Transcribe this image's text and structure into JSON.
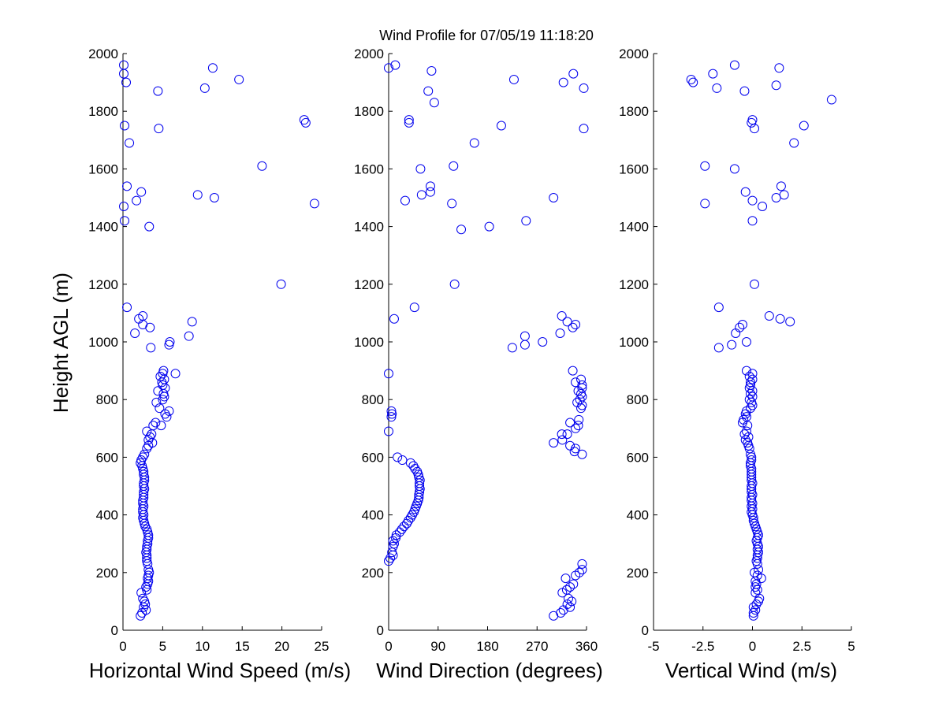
{
  "title": "Wind Profile for  07/05/19 11:18:20",
  "ylabel": "Height AGL (m)",
  "colors": {
    "marker": "#0000ee",
    "axis": "#000000"
  },
  "chart_data": [
    {
      "type": "scatter",
      "xlabel": "Horizontal Wind Speed (m/s)",
      "xlim": [
        0,
        25
      ],
      "ylim": [
        0,
        2000
      ],
      "xticks": [
        "0",
        "5",
        "10",
        "15",
        "20",
        "25"
      ],
      "xtick_values": [
        0,
        5,
        10,
        15,
        20,
        25
      ],
      "yticks": [
        "0",
        "200",
        "400",
        "600",
        "800",
        "1000",
        "1200",
        "1400",
        "1600",
        "1800",
        "2000"
      ],
      "marker": "circle",
      "points": [
        [
          2.2,
          50
        ],
        [
          2.4,
          60
        ],
        [
          2.9,
          70
        ],
        [
          2.6,
          80
        ],
        [
          2.8,
          90
        ],
        [
          2.7,
          100
        ],
        [
          2.5,
          110
        ],
        [
          2.3,
          130
        ],
        [
          3.0,
          140
        ],
        [
          2.9,
          150
        ],
        [
          3.1,
          160
        ],
        [
          3.2,
          170
        ],
        [
          3.1,
          180
        ],
        [
          3.2,
          190
        ],
        [
          3.3,
          200
        ],
        [
          3.2,
          210
        ],
        [
          3.1,
          230
        ],
        [
          3.0,
          240
        ],
        [
          3.0,
          250
        ],
        [
          3.0,
          260
        ],
        [
          2.9,
          270
        ],
        [
          3.0,
          280
        ],
        [
          3.0,
          290
        ],
        [
          3.1,
          300
        ],
        [
          3.1,
          310
        ],
        [
          3.2,
          320
        ],
        [
          3.2,
          330
        ],
        [
          3.1,
          340
        ],
        [
          3.0,
          350
        ],
        [
          2.8,
          360
        ],
        [
          2.7,
          370
        ],
        [
          2.6,
          380
        ],
        [
          2.5,
          390
        ],
        [
          2.6,
          400
        ],
        [
          2.5,
          410
        ],
        [
          2.5,
          420
        ],
        [
          2.6,
          430
        ],
        [
          2.5,
          440
        ],
        [
          2.5,
          450
        ],
        [
          2.6,
          460
        ],
        [
          2.6,
          470
        ],
        [
          2.6,
          480
        ],
        [
          2.7,
          490
        ],
        [
          2.6,
          500
        ],
        [
          2.6,
          510
        ],
        [
          2.7,
          520
        ],
        [
          2.7,
          530
        ],
        [
          2.6,
          540
        ],
        [
          2.6,
          550
        ],
        [
          2.5,
          560
        ],
        [
          2.4,
          570
        ],
        [
          2.2,
          580
        ],
        [
          2.3,
          590
        ],
        [
          2.5,
          600
        ],
        [
          2.7,
          610
        ],
        [
          3.0,
          630
        ],
        [
          3.2,
          640
        ],
        [
          3.7,
          650
        ],
        [
          3.2,
          660
        ],
        [
          3.4,
          670
        ],
        [
          3.6,
          680
        ],
        [
          3.0,
          690
        ],
        [
          3.8,
          710
        ],
        [
          4.1,
          720
        ],
        [
          4.8,
          710
        ],
        [
          5.5,
          740
        ],
        [
          5.8,
          760
        ],
        [
          5.3,
          750
        ],
        [
          4.6,
          770
        ],
        [
          4.2,
          790
        ],
        [
          5.0,
          800
        ],
        [
          5.2,
          810
        ],
        [
          5.1,
          820
        ],
        [
          4.4,
          830
        ],
        [
          5.3,
          840
        ],
        [
          5.0,
          850
        ],
        [
          4.9,
          860
        ],
        [
          5.2,
          870
        ],
        [
          4.7,
          880
        ],
        [
          5.0,
          890
        ],
        [
          6.6,
          890
        ],
        [
          5.1,
          900
        ],
        [
          3.5,
          980
        ],
        [
          5.8,
          990
        ],
        [
          5.9,
          1000
        ],
        [
          8.3,
          1020
        ],
        [
          1.5,
          1030
        ],
        [
          3.4,
          1050
        ],
        [
          2.5,
          1060
        ],
        [
          8.7,
          1070
        ],
        [
          2.0,
          1080
        ],
        [
          2.5,
          1090
        ],
        [
          0.5,
          1120
        ],
        [
          19.9,
          1200
        ],
        [
          0.2,
          1420
        ],
        [
          0.1,
          1470
        ],
        [
          24.1,
          1480
        ],
        [
          3.3,
          1400
        ],
        [
          1.7,
          1490
        ],
        [
          11.5,
          1500
        ],
        [
          9.4,
          1510
        ],
        [
          2.3,
          1520
        ],
        [
          0.5,
          1540
        ],
        [
          17.5,
          1610
        ],
        [
          0.8,
          1690
        ],
        [
          4.5,
          1740
        ],
        [
          0.2,
          1750
        ],
        [
          23.0,
          1760
        ],
        [
          22.8,
          1770
        ],
        [
          4.4,
          1870
        ],
        [
          10.3,
          1880
        ],
        [
          0.4,
          1900
        ],
        [
          14.6,
          1910
        ],
        [
          0.1,
          1930
        ],
        [
          11.3,
          1950
        ],
        [
          0.1,
          1960
        ]
      ]
    },
    {
      "type": "scatter",
      "xlabel": "Wind Direction (degrees)",
      "xlim": [
        0,
        360
      ],
      "ylim": [
        0,
        2000
      ],
      "xticks": [
        "0",
        "90",
        "180",
        "270",
        "360"
      ],
      "xtick_values": [
        0,
        90,
        180,
        270,
        360
      ],
      "yticks": [
        "0",
        "200",
        "400",
        "600",
        "800",
        "1000",
        "1200",
        "1400",
        "1600",
        "1800",
        "2000"
      ],
      "marker": "circle",
      "points": [
        [
          300,
          50
        ],
        [
          313,
          60
        ],
        [
          318,
          70
        ],
        [
          330,
          80
        ],
        [
          325,
          90
        ],
        [
          333,
          100
        ],
        [
          327,
          110
        ],
        [
          316,
          130
        ],
        [
          324,
          140
        ],
        [
          330,
          150
        ],
        [
          336,
          160
        ],
        [
          322,
          180
        ],
        [
          340,
          190
        ],
        [
          347,
          200
        ],
        [
          352,
          210
        ],
        [
          352,
          230
        ],
        [
          0,
          240
        ],
        [
          3,
          250
        ],
        [
          8,
          260
        ],
        [
          6,
          270
        ],
        [
          8,
          290
        ],
        [
          10,
          300
        ],
        [
          8,
          310
        ],
        [
          13,
          320
        ],
        [
          14,
          330
        ],
        [
          20,
          340
        ],
        [
          24,
          350
        ],
        [
          28,
          360
        ],
        [
          33,
          370
        ],
        [
          36,
          380
        ],
        [
          40,
          390
        ],
        [
          43,
          400
        ],
        [
          46,
          410
        ],
        [
          48,
          420
        ],
        [
          50,
          430
        ],
        [
          52,
          440
        ],
        [
          54,
          450
        ],
        [
          55,
          460
        ],
        [
          55,
          470
        ],
        [
          56,
          480
        ],
        [
          57,
          490
        ],
        [
          56,
          500
        ],
        [
          56,
          510
        ],
        [
          57,
          520
        ],
        [
          55,
          530
        ],
        [
          54,
          540
        ],
        [
          52,
          550
        ],
        [
          48,
          560
        ],
        [
          45,
          570
        ],
        [
          40,
          580
        ],
        [
          25,
          590
        ],
        [
          16,
          600
        ],
        [
          352,
          610
        ],
        [
          338,
          620
        ],
        [
          340,
          630
        ],
        [
          330,
          640
        ],
        [
          300,
          650
        ],
        [
          316,
          660
        ],
        [
          315,
          680
        ],
        [
          325,
          680
        ],
        [
          0,
          690
        ],
        [
          340,
          700
        ],
        [
          345,
          710
        ],
        [
          330,
          720
        ],
        [
          346,
          730
        ],
        [
          5,
          740
        ],
        [
          6,
          750
        ],
        [
          5,
          760
        ],
        [
          350,
          770
        ],
        [
          352,
          780
        ],
        [
          343,
          790
        ],
        [
          348,
          800
        ],
        [
          352,
          810
        ],
        [
          350,
          820
        ],
        [
          345,
          830
        ],
        [
          352,
          840
        ],
        [
          352,
          850
        ],
        [
          340,
          860
        ],
        [
          350,
          870
        ],
        [
          0,
          890
        ],
        [
          335,
          900
        ],
        [
          225,
          980
        ],
        [
          248,
          990
        ],
        [
          280,
          1000
        ],
        [
          248,
          1020
        ],
        [
          312,
          1030
        ],
        [
          335,
          1050
        ],
        [
          325,
          1070
        ],
        [
          340,
          1060
        ],
        [
          10,
          1080
        ],
        [
          315,
          1090
        ],
        [
          47,
          1120
        ],
        [
          120,
          1200
        ],
        [
          132,
          1390
        ],
        [
          183,
          1400
        ],
        [
          250,
          1420
        ],
        [
          115,
          1480
        ],
        [
          30,
          1490
        ],
        [
          300,
          1500
        ],
        [
          60,
          1510
        ],
        [
          76,
          1520
        ],
        [
          76,
          1540
        ],
        [
          58,
          1600
        ],
        [
          118,
          1610
        ],
        [
          156,
          1690
        ],
        [
          355,
          1740
        ],
        [
          205,
          1750
        ],
        [
          37,
          1760
        ],
        [
          37,
          1770
        ],
        [
          83,
          1830
        ],
        [
          72,
          1870
        ],
        [
          355,
          1880
        ],
        [
          318,
          1900
        ],
        [
          228,
          1910
        ],
        [
          336,
          1930
        ],
        [
          0,
          1950
        ],
        [
          12,
          1960
        ],
        [
          78,
          1940
        ]
      ]
    },
    {
      "type": "scatter",
      "xlabel": "Vertical Wind (m/s)",
      "xlim": [
        -5,
        5
      ],
      "ylim": [
        0,
        2000
      ],
      "xticks": [
        "-5",
        "-2.5",
        "0",
        "2.5",
        "5"
      ],
      "xtick_values": [
        -5,
        -2.5,
        0,
        2.5,
        5
      ],
      "yticks": [
        "0",
        "200",
        "400",
        "600",
        "800",
        "1000",
        "1200",
        "1400",
        "1600",
        "1800",
        "2000"
      ],
      "marker": "circle",
      "points": [
        [
          0.05,
          50
        ],
        [
          0.05,
          60
        ],
        [
          0.15,
          70
        ],
        [
          0.05,
          80
        ],
        [
          0.2,
          90
        ],
        [
          0.3,
          100
        ],
        [
          0.35,
          110
        ],
        [
          0.15,
          130
        ],
        [
          0.25,
          140
        ],
        [
          0.15,
          150
        ],
        [
          0.2,
          160
        ],
        [
          0.15,
          170
        ],
        [
          0.45,
          180
        ],
        [
          0.25,
          190
        ],
        [
          0.1,
          200
        ],
        [
          0.3,
          210
        ],
        [
          0.25,
          230
        ],
        [
          0.2,
          240
        ],
        [
          0.25,
          250
        ],
        [
          0.25,
          260
        ],
        [
          0.3,
          270
        ],
        [
          0.25,
          280
        ],
        [
          0.3,
          290
        ],
        [
          0.25,
          300
        ],
        [
          0.2,
          310
        ],
        [
          0.25,
          320
        ],
        [
          0.3,
          330
        ],
        [
          0.25,
          340
        ],
        [
          0.2,
          350
        ],
        [
          0.15,
          360
        ],
        [
          0.1,
          370
        ],
        [
          0.05,
          380
        ],
        [
          0.05,
          390
        ],
        [
          0.0,
          400
        ],
        [
          -0.05,
          410
        ],
        [
          0.0,
          420
        ],
        [
          -0.05,
          430
        ],
        [
          0.0,
          440
        ],
        [
          -0.05,
          450
        ],
        [
          -0.05,
          460
        ],
        [
          0.0,
          470
        ],
        [
          -0.05,
          480
        ],
        [
          -0.05,
          490
        ],
        [
          -0.05,
          500
        ],
        [
          0.0,
          510
        ],
        [
          -0.05,
          520
        ],
        [
          -0.05,
          530
        ],
        [
          -0.05,
          540
        ],
        [
          -0.05,
          550
        ],
        [
          -0.05,
          560
        ],
        [
          -0.1,
          570
        ],
        [
          -0.1,
          580
        ],
        [
          -0.05,
          590
        ],
        [
          -0.05,
          600
        ],
        [
          -0.1,
          610
        ],
        [
          -0.15,
          630
        ],
        [
          -0.2,
          640
        ],
        [
          -0.25,
          650
        ],
        [
          -0.35,
          660
        ],
        [
          -0.2,
          670
        ],
        [
          -0.4,
          680
        ],
        [
          -0.3,
          690
        ],
        [
          -0.25,
          710
        ],
        [
          -0.5,
          720
        ],
        [
          -0.45,
          730
        ],
        [
          -0.3,
          740
        ],
        [
          -0.35,
          750
        ],
        [
          -0.3,
          760
        ],
        [
          -0.1,
          770
        ],
        [
          0.0,
          780
        ],
        [
          -0.05,
          790
        ],
        [
          -0.15,
          800
        ],
        [
          0.0,
          810
        ],
        [
          -0.1,
          820
        ],
        [
          0.0,
          830
        ],
        [
          -0.15,
          840
        ],
        [
          -0.1,
          850
        ],
        [
          -0.1,
          860
        ],
        [
          0.0,
          870
        ],
        [
          -0.15,
          880
        ],
        [
          0.0,
          890
        ],
        [
          -0.3,
          900
        ],
        [
          -1.7,
          980
        ],
        [
          -1.05,
          990
        ],
        [
          -0.3,
          1000
        ],
        [
          -0.85,
          1030
        ],
        [
          -0.65,
          1050
        ],
        [
          -0.5,
          1060
        ],
        [
          1.9,
          1070
        ],
        [
          1.4,
          1080
        ],
        [
          0.85,
          1090
        ],
        [
          -1.7,
          1120
        ],
        [
          0.1,
          1200
        ],
        [
          0.0,
          1420
        ],
        [
          0.5,
          1470
        ],
        [
          -2.4,
          1480
        ],
        [
          0.0,
          1490
        ],
        [
          1.2,
          1500
        ],
        [
          1.6,
          1510
        ],
        [
          -0.35,
          1520
        ],
        [
          1.45,
          1540
        ],
        [
          -0.9,
          1600
        ],
        [
          -2.4,
          1610
        ],
        [
          2.1,
          1690
        ],
        [
          0.1,
          1740
        ],
        [
          2.6,
          1750
        ],
        [
          -0.05,
          1760
        ],
        [
          0.0,
          1770
        ],
        [
          4.0,
          1840
        ],
        [
          -0.4,
          1870
        ],
        [
          -1.8,
          1880
        ],
        [
          1.2,
          1890
        ],
        [
          -3.0,
          1900
        ],
        [
          -3.1,
          1910
        ],
        [
          -2.0,
          1930
        ],
        [
          1.35,
          1950
        ],
        [
          -0.9,
          1960
        ]
      ]
    }
  ]
}
